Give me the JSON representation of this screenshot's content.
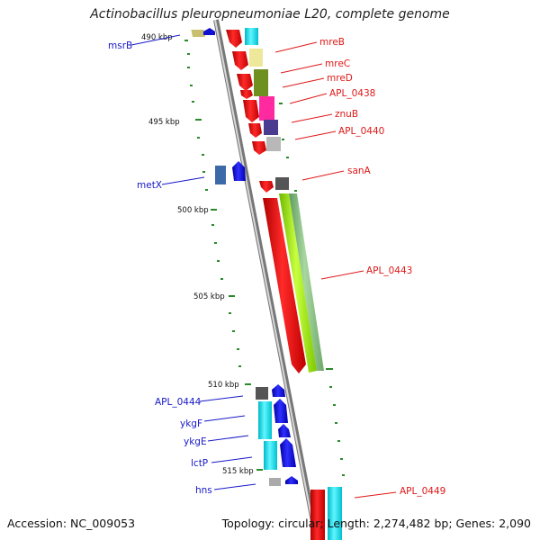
{
  "title": "Actinobacillus pleuropneumoniae L20, complete genome",
  "accession": "Accession: NC_009053",
  "summary": "Topology: circular; Length: 2,274,482 bp; Genes: 2,090",
  "colors": {
    "forward_label": "#1818c8",
    "reverse_label": "#e01818",
    "backbone": "#9a9a9a",
    "tick": "#2a8a2a"
  },
  "ticks": [
    "490 kbp",
    "495 kbp",
    "500 kbp",
    "505 kbp",
    "510 kbp",
    "515 kbp"
  ],
  "labels_left": [
    "msrB",
    "metX",
    "APL_0444",
    "ykgF",
    "ykgE",
    "lctP",
    "hns"
  ],
  "labels_right": [
    "mreB",
    "mreC",
    "mreD",
    "APL_0438",
    "znuB",
    "APL_0440",
    "sanA",
    "APL_0443",
    "APL_0449"
  ]
}
